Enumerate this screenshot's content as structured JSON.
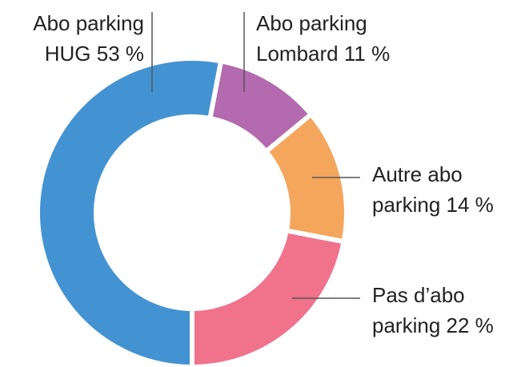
{
  "chart_data": {
    "type": "donut",
    "categories": [
      "Abo parking HUG",
      "Abo parking Lombard",
      "Autre abo parking",
      "Pas d’abo parking"
    ],
    "values": [
      53,
      11,
      14,
      22
    ],
    "value_labels": [
      "53 %",
      "11 %",
      "14 %",
      "22 %"
    ],
    "colors": [
      "#4393d3",
      "#b36aae",
      "#f5a65d",
      "#f0728b"
    ]
  }
}
